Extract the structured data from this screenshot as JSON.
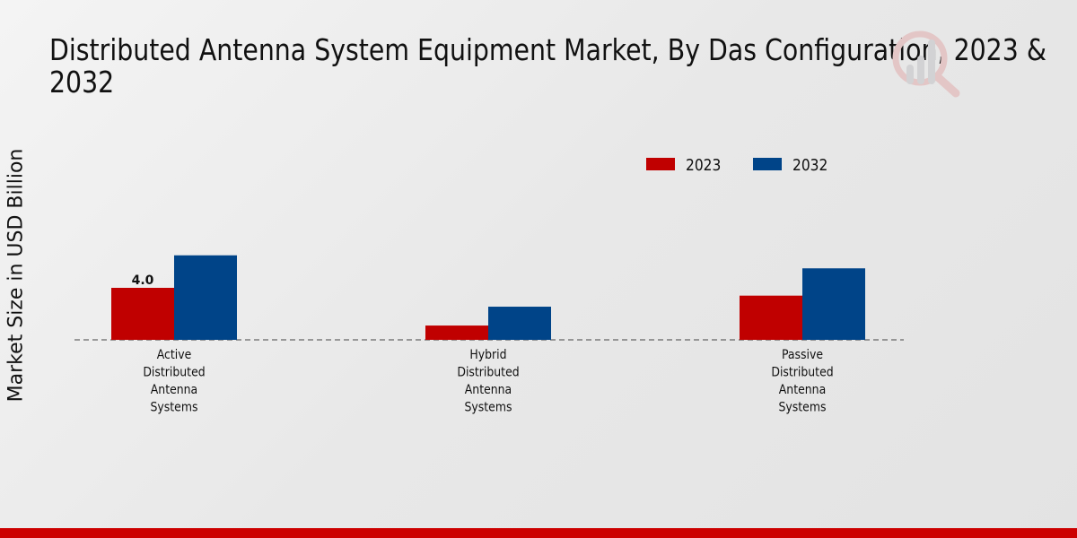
{
  "chart_data": {
    "type": "bar",
    "title_line1": "Distributed Antenna System Equipment Market, By Das Configuration, 2023 &",
    "title_line2": "2032",
    "xlabel": "",
    "ylabel": "Market Size in USD Billion",
    "categories": [
      "Active\nDistributed\nAntenna\nSystems",
      "Hybrid\nDistributed\nAntenna\nSystems",
      "Passive\nDistributed\nAntenna\nSystems"
    ],
    "series": [
      {
        "name": "2023",
        "color": "#c00000",
        "values": [
          4.0,
          1.1,
          3.4
        ]
      },
      {
        "name": "2032",
        "color": "#004488",
        "values": [
          6.5,
          2.55,
          5.5
        ]
      }
    ],
    "data_labels": [
      {
        "series": 0,
        "index": 0,
        "text": "4.0"
      }
    ],
    "ylim": [
      0,
      9.5
    ],
    "grid": false,
    "legend": "top-right"
  }
}
